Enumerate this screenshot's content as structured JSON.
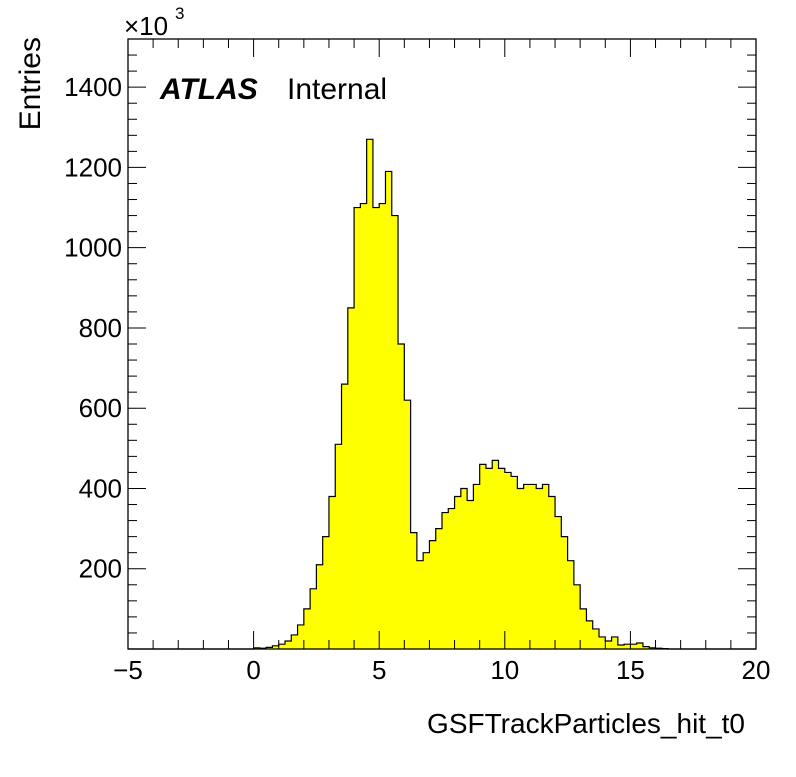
{
  "chart_data": {
    "type": "bar",
    "title": "",
    "xlabel": "GSFTrackParticles_hit_t0",
    "ylabel": "Entries",
    "y_multiplier_label": "×10",
    "y_multiplier_exponent": "3",
    "xlim": [
      -5,
      20
    ],
    "ylim": [
      0,
      1520
    ],
    "x_ticks": [
      -5,
      0,
      5,
      10,
      15,
      20
    ],
    "x_tick_labels": [
      "−5",
      "0",
      "5",
      "10",
      "15",
      "20"
    ],
    "y_ticks": [
      200,
      400,
      600,
      800,
      1000,
      1200,
      1400
    ],
    "y_tick_labels": [
      "200",
      "400",
      "600",
      "800",
      "1000",
      "1200",
      "1400"
    ],
    "bin_start": -5,
    "bin_width": 0.25,
    "values": [
      0,
      0,
      0,
      0,
      0,
      0,
      0,
      0,
      0,
      0,
      0,
      0,
      0,
      0,
      0,
      0,
      0,
      0,
      0,
      0,
      3,
      2,
      4,
      8,
      12,
      20,
      35,
      60,
      100,
      150,
      210,
      280,
      380,
      510,
      660,
      850,
      1100,
      1110,
      1270,
      1100,
      1110,
      1190,
      1080,
      760,
      620,
      290,
      220,
      240,
      270,
      300,
      340,
      350,
      380,
      400,
      370,
      410,
      460,
      450,
      470,
      450,
      440,
      430,
      400,
      410,
      410,
      400,
      410,
      380,
      330,
      280,
      220,
      160,
      100,
      70,
      50,
      30,
      20,
      30,
      10,
      12,
      12,
      15,
      6,
      3,
      2,
      1,
      0,
      0,
      0,
      0,
      0,
      0,
      0,
      0,
      0,
      0,
      0,
      0,
      0,
      0
    ],
    "fill_color": "#ffff00",
    "line_color": "#000000",
    "grid": false,
    "annotations": [
      {
        "text": "ATLAS",
        "style": "bold-italic"
      },
      {
        "text": "Internal",
        "style": "normal"
      }
    ]
  }
}
